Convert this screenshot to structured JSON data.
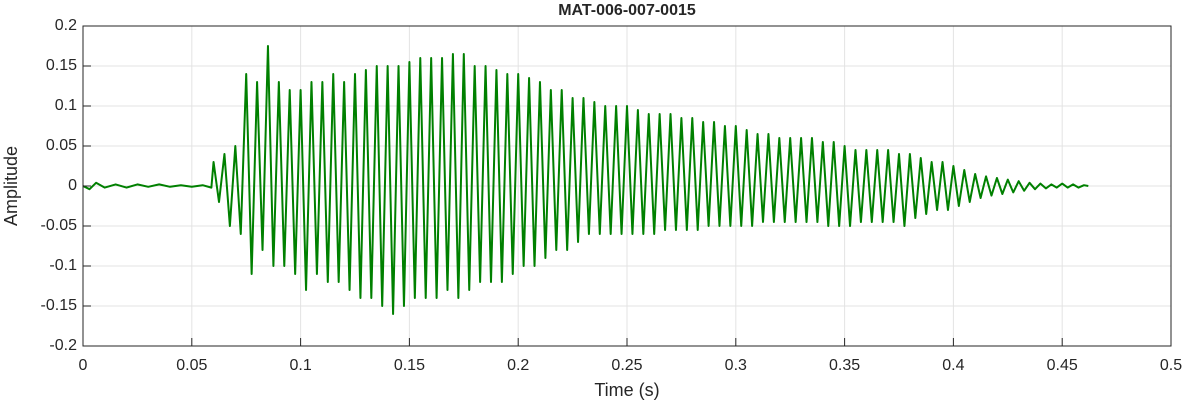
{
  "chart_data": {
    "type": "line",
    "title": "MAT-006-007-0015",
    "x_label": "Time (s)",
    "y_label": "Amplitude",
    "xlim": [
      0,
      0.5
    ],
    "ylim": [
      -0.2,
      0.2
    ],
    "xticks": [
      0,
      0.05,
      0.1,
      0.15,
      0.2,
      0.25,
      0.3,
      0.35,
      0.4,
      0.45,
      0.5
    ],
    "yticks": [
      -0.2,
      -0.15,
      -0.1,
      -0.05,
      0,
      0.05,
      0.1,
      0.15,
      0.2
    ],
    "grid": true,
    "series": [
      {
        "color": "#008000",
        "x": [
          0,
          0.003,
          0.006,
          0.01,
          0.015,
          0.02,
          0.025,
          0.03,
          0.035,
          0.04,
          0.045,
          0.05,
          0.055,
          0.059,
          0.06,
          0.0625,
          0.065,
          0.0675,
          0.07,
          0.0725,
          0.075,
          0.0775,
          0.08,
          0.0825,
          0.085,
          0.0875,
          0.09,
          0.0925,
          0.095,
          0.0975,
          0.1,
          0.1025,
          0.105,
          0.1075,
          0.11,
          0.1125,
          0.115,
          0.1175,
          0.12,
          0.1225,
          0.125,
          0.1275,
          0.13,
          0.1325,
          0.135,
          0.1375,
          0.14,
          0.1425,
          0.145,
          0.1475,
          0.15,
          0.1525,
          0.155,
          0.1575,
          0.16,
          0.1625,
          0.165,
          0.1675,
          0.17,
          0.1725,
          0.175,
          0.1775,
          0.18,
          0.1825,
          0.185,
          0.1875,
          0.19,
          0.1925,
          0.195,
          0.1975,
          0.2,
          0.2025,
          0.205,
          0.2075,
          0.21,
          0.2125,
          0.215,
          0.2175,
          0.22,
          0.2225,
          0.225,
          0.2275,
          0.23,
          0.2325,
          0.235,
          0.2375,
          0.24,
          0.2425,
          0.245,
          0.2475,
          0.25,
          0.2525,
          0.255,
          0.2575,
          0.26,
          0.2625,
          0.265,
          0.2675,
          0.27,
          0.2725,
          0.275,
          0.2775,
          0.28,
          0.2825,
          0.285,
          0.2875,
          0.29,
          0.2925,
          0.295,
          0.2975,
          0.3,
          0.3025,
          0.305,
          0.3075,
          0.31,
          0.3125,
          0.315,
          0.3175,
          0.32,
          0.3225,
          0.325,
          0.3275,
          0.33,
          0.3325,
          0.335,
          0.3375,
          0.34,
          0.3425,
          0.345,
          0.3475,
          0.35,
          0.3525,
          0.355,
          0.3575,
          0.36,
          0.3625,
          0.365,
          0.3675,
          0.37,
          0.3725,
          0.375,
          0.3775,
          0.38,
          0.3825,
          0.385,
          0.3875,
          0.39,
          0.3925,
          0.395,
          0.3975,
          0.4,
          0.4025,
          0.405,
          0.4075,
          0.41,
          0.4125,
          0.415,
          0.4175,
          0.42,
          0.4225,
          0.425,
          0.4275,
          0.43,
          0.4325,
          0.435,
          0.4375,
          0.44,
          0.4425,
          0.445,
          0.4475,
          0.45,
          0.4525,
          0.455,
          0.4575,
          0.46,
          0.462
        ],
        "values": [
          0,
          -0.004,
          0.004,
          -0.002,
          0.002,
          -0.002,
          0.002,
          -0.001,
          0.002,
          -0.001,
          0.001,
          -0.001,
          0.001,
          -0.002,
          0.03,
          -0.02,
          0.04,
          -0.05,
          0.05,
          -0.06,
          0.14,
          -0.11,
          0.13,
          -0.08,
          0.175,
          -0.1,
          0.13,
          -0.1,
          0.12,
          -0.11,
          0.12,
          -0.13,
          0.13,
          -0.11,
          0.13,
          -0.12,
          0.14,
          -0.12,
          0.13,
          -0.13,
          0.14,
          -0.14,
          0.145,
          -0.14,
          0.15,
          -0.15,
          0.15,
          -0.16,
          0.15,
          -0.15,
          0.155,
          -0.14,
          0.16,
          -0.14,
          0.16,
          -0.14,
          0.16,
          -0.13,
          0.165,
          -0.14,
          0.165,
          -0.13,
          0.15,
          -0.12,
          0.15,
          -0.12,
          0.145,
          -0.12,
          0.14,
          -0.11,
          0.14,
          -0.1,
          0.135,
          -0.1,
          0.13,
          -0.09,
          0.12,
          -0.08,
          0.12,
          -0.08,
          0.11,
          -0.07,
          0.11,
          -0.06,
          0.105,
          -0.06,
          0.1,
          -0.06,
          0.1,
          -0.06,
          0.1,
          -0.06,
          0.095,
          -0.06,
          0.09,
          -0.06,
          0.09,
          -0.055,
          0.09,
          -0.055,
          0.085,
          -0.055,
          0.085,
          -0.055,
          0.08,
          -0.05,
          0.08,
          -0.05,
          0.075,
          -0.05,
          0.075,
          -0.05,
          0.07,
          -0.05,
          0.065,
          -0.045,
          0.065,
          -0.045,
          0.06,
          -0.045,
          0.06,
          -0.045,
          0.06,
          -0.045,
          0.06,
          -0.045,
          0.055,
          -0.05,
          0.055,
          -0.05,
          0.05,
          -0.05,
          0.045,
          -0.045,
          0.045,
          -0.045,
          0.045,
          -0.045,
          0.045,
          -0.045,
          0.04,
          -0.05,
          0.04,
          -0.04,
          0.035,
          -0.035,
          0.03,
          -0.03,
          0.03,
          -0.03,
          0.025,
          -0.025,
          0.02,
          -0.02,
          0.015,
          -0.015,
          0.012,
          -0.012,
          0.01,
          -0.01,
          0.008,
          -0.008,
          0.006,
          -0.006,
          0.004,
          -0.004,
          0.003,
          -0.003,
          0.002,
          -0.002,
          0.003,
          -0.002,
          0.002,
          -0.002,
          0.001,
          0
        ]
      }
    ]
  }
}
